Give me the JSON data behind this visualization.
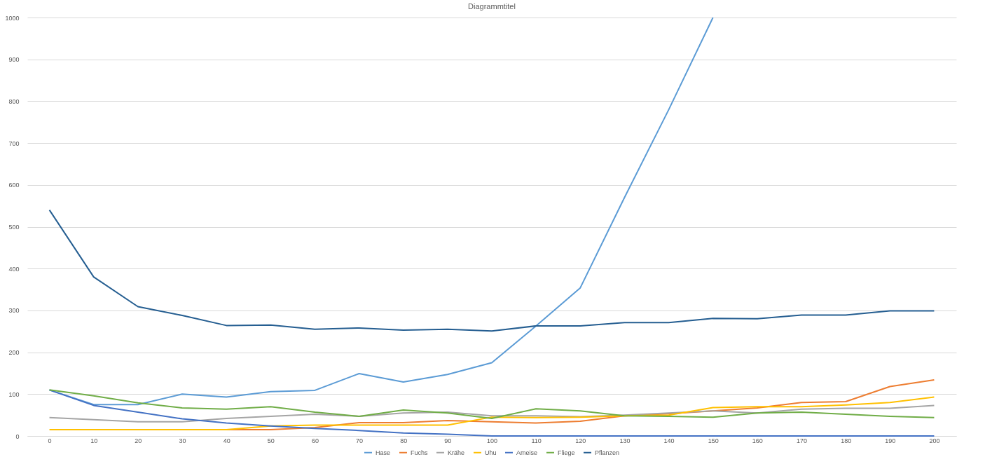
{
  "chart_data": {
    "type": "line",
    "title": "Diagrammtitel",
    "categories": [
      "0",
      "10",
      "20",
      "30",
      "40",
      "50",
      "60",
      "70",
      "80",
      "90",
      "100",
      "110",
      "120",
      "130",
      "140",
      "150",
      "160",
      "170",
      "180",
      "190",
      "200"
    ],
    "series": [
      {
        "name": "Hase",
        "color": "#5b9bd5",
        "values": [
          110,
          75,
          75,
          100,
          93,
          106,
          109,
          149,
          129,
          147,
          175,
          263,
          354,
          570,
          780,
          1000,
          null,
          null,
          null,
          null,
          null
        ]
      },
      {
        "name": "Fuchs",
        "color": "#ed7d31",
        "values": [
          null,
          null,
          null,
          15,
          15,
          15,
          20,
          32,
          32,
          37,
          34,
          31,
          35,
          48,
          53,
          60,
          67,
          80,
          82,
          118,
          134
        ]
      },
      {
        "name": "Krähe",
        "color": "#a5a5a5",
        "values": [
          44,
          39,
          34,
          34,
          42,
          47,
          52,
          47,
          55,
          57,
          48,
          48,
          46,
          50,
          55,
          60,
          55,
          64,
          66,
          66,
          73
        ]
      },
      {
        "name": "Uhu",
        "color": "#ffc000",
        "values": [
          15,
          15,
          15,
          15,
          15,
          24,
          26,
          26,
          26,
          26,
          45,
          44,
          45,
          48,
          50,
          68,
          70,
          70,
          74,
          80,
          93
        ]
      },
      {
        "name": "Ameise",
        "color": "#4472c4",
        "values": [
          110,
          73,
          57,
          41,
          31,
          24,
          18,
          13,
          7,
          4,
          0,
          0,
          0,
          0,
          0,
          0,
          0,
          0,
          0,
          0,
          0
        ]
      },
      {
        "name": "Fliege",
        "color": "#70ad47",
        "values": [
          110,
          96,
          79,
          67,
          64,
          70,
          57,
          47,
          62,
          55,
          42,
          65,
          60,
          48,
          47,
          45,
          55,
          57,
          52,
          47,
          44
        ]
      },
      {
        "name": "Pflanzen",
        "color": "#255e91",
        "values": [
          540,
          380,
          309,
          288,
          264,
          265,
          255,
          258,
          253,
          255,
          251,
          263,
          263,
          271,
          271,
          281,
          280,
          289,
          289,
          299,
          299
        ]
      }
    ],
    "ylim": [
      0,
      1000
    ],
    "yticks": [
      0,
      100,
      200,
      300,
      400,
      500,
      600,
      700,
      800,
      900,
      1000
    ],
    "grid": "y",
    "legend": "bottom",
    "marker": "none",
    "line_style": "solid"
  }
}
